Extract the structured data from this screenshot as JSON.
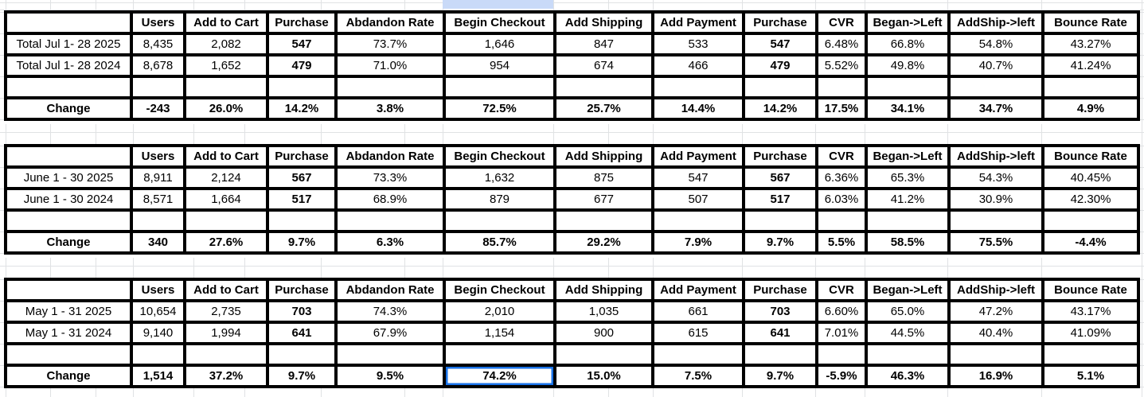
{
  "app": {
    "type": "spreadsheet-funnel-report"
  },
  "colors": {
    "highlight_green": "#00ff00",
    "negative_red": "#ff0000",
    "selection_blue": "#1a73e8",
    "partial_cell_blue": "#c9daf8",
    "gridline": "#e0e2e4",
    "table_border": "#000000"
  },
  "columns": [
    "Users",
    "Add to Cart",
    "Purchase",
    "Abdandon Rate",
    "Begin Checkout",
    "Add Shipping",
    "Add Payment",
    "Purchase",
    "CVR",
    "Began->Left",
    "AddShip->left",
    "Bounce Rate"
  ],
  "tables": [
    {
      "id": "july",
      "rows": [
        {
          "label": "Total Jul 1- 28 2025",
          "values": [
            "8,435",
            "2,082",
            "547",
            "73.7%",
            "1,646",
            "847",
            "533",
            "547",
            "6.48%",
            "66.8%",
            "54.8%",
            "43.27%"
          ]
        },
        {
          "label": "Total Jul 1- 28 2024",
          "values": [
            "8,678",
            "1,652",
            "479",
            "71.0%",
            "954",
            "674",
            "466",
            "479",
            "5.52%",
            "49.8%",
            "40.7%",
            "41.24%"
          ]
        }
      ],
      "change": {
        "label": "Change",
        "values": [
          "-243",
          "26.0%",
          "14.2%",
          "3.8%",
          "72.5%",
          "25.7%",
          "14.4%",
          "14.2%",
          "17.5%",
          "34.1%",
          "34.7%",
          "4.9%"
        ],
        "green_cells": [
          4,
          7,
          8
        ],
        "red_cells": [
          0
        ],
        "selected_cell": null
      }
    },
    {
      "id": "june",
      "rows": [
        {
          "label": "June 1 - 30 2025",
          "values": [
            "8,911",
            "2,124",
            "567",
            "73.3%",
            "1,632",
            "875",
            "547",
            "567",
            "6.36%",
            "65.3%",
            "54.3%",
            "40.45%"
          ]
        },
        {
          "label": "June 1 - 30 2024",
          "values": [
            "8,571",
            "1,664",
            "517",
            "68.9%",
            "879",
            "677",
            "507",
            "517",
            "6.03%",
            "41.2%",
            "30.9%",
            "42.30%"
          ]
        }
      ],
      "change": {
        "label": "Change",
        "values": [
          "340",
          "27.6%",
          "9.7%",
          "6.3%",
          "85.7%",
          "29.2%",
          "7.9%",
          "9.7%",
          "5.5%",
          "58.5%",
          "75.5%",
          "-4.4%"
        ],
        "green_cells": [
          4,
          7,
          8
        ],
        "red_cells": [],
        "selected_cell": null
      }
    },
    {
      "id": "may",
      "rows": [
        {
          "label": "May 1 - 31 2025",
          "values": [
            "10,654",
            "2,735",
            "703",
            "74.3%",
            "2,010",
            "1,035",
            "661",
            "703",
            "6.60%",
            "65.0%",
            "47.2%",
            "43.17%"
          ]
        },
        {
          "label": "May 1 - 31 2024",
          "values": [
            "9,140",
            "1,994",
            "641",
            "67.9%",
            "1,154",
            "900",
            "615",
            "641",
            "7.01%",
            "44.5%",
            "40.4%",
            "41.09%"
          ]
        }
      ],
      "change": {
        "label": "Change",
        "values": [
          "1,514",
          "37.2%",
          "9.7%",
          "9.5%",
          "74.2%",
          "15.0%",
          "7.5%",
          "9.7%",
          "-5.9%",
          "46.3%",
          "16.9%",
          "5.1%"
        ],
        "green_cells": [],
        "red_cells": [],
        "selected_cell": 4
      }
    }
  ]
}
